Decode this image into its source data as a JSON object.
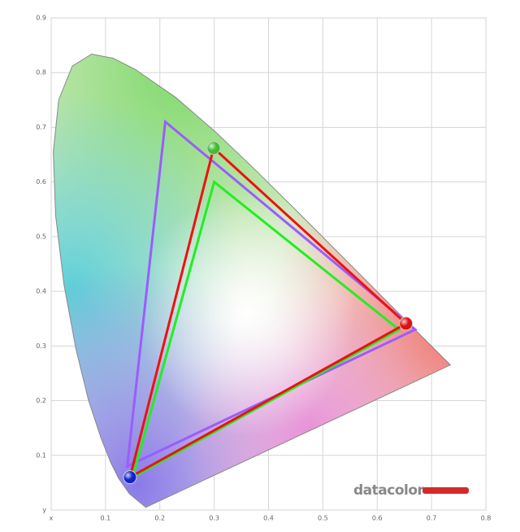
{
  "chart_data": {
    "type": "gamut",
    "xlim": [
      0,
      0.8
    ],
    "ylim": [
      0,
      0.9
    ],
    "xticks": [
      {
        "value": 0,
        "label": "x"
      },
      0.1,
      0.2,
      0.3,
      0.4,
      0.5,
      0.6,
      0.7,
      0.8
    ],
    "yticks": [
      {
        "value": 0,
        "label": "y"
      },
      0.1,
      0.2,
      0.3,
      0.4,
      0.5,
      0.6,
      0.7,
      0.8,
      0.9
    ],
    "grid": true,
    "locus": {
      "x": [
        0.1741,
        0.144,
        0.1241,
        0.1096,
        0.0913,
        0.0687,
        0.0454,
        0.0235,
        0.0082,
        0.0039,
        0.0139,
        0.0389,
        0.0743,
        0.1142,
        0.1547,
        0.2296,
        0.3016,
        0.3731,
        0.4441,
        0.5125,
        0.5752,
        0.627,
        0.6915,
        0.7347
      ],
      "y": [
        0.005,
        0.0297,
        0.0578,
        0.0868,
        0.1327,
        0.2007,
        0.295,
        0.4127,
        0.5384,
        0.6548,
        0.7502,
        0.812,
        0.8338,
        0.8262,
        0.8059,
        0.7543,
        0.6923,
        0.6245,
        0.5547,
        0.4866,
        0.4242,
        0.3725,
        0.3083,
        0.2653
      ]
    },
    "series": [
      {
        "color": "#9b5cff",
        "x": [
          0.21,
          0.67,
          0.14
        ],
        "y": [
          0.71,
          0.33,
          0.08
        ]
      },
      {
        "color": "#22ee22",
        "x": [
          0.3,
          0.64,
          0.15
        ],
        "y": [
          0.6,
          0.33,
          0.06
        ]
      },
      {
        "color": "#ee1111",
        "x": [
          0.299,
          0.653,
          0.145
        ],
        "y": [
          0.662,
          0.341,
          0.06
        ],
        "marker_colors": [
          "#44bb33",
          "#dd1111",
          "#1122cc"
        ]
      }
    ],
    "logo": "datacolor"
  }
}
